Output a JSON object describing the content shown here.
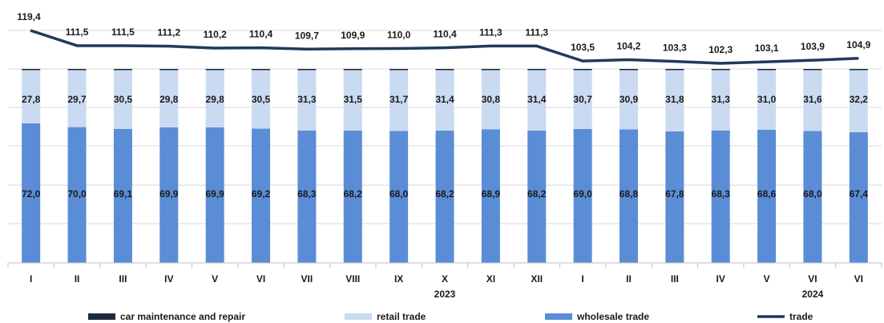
{
  "chart_data": {
    "type": "bar",
    "stacked": true,
    "categories": [
      "I",
      "II",
      "III",
      "IV",
      "V",
      "VI",
      "VII",
      "VIII",
      "IX",
      "X",
      "XI",
      "XII",
      "I",
      "II",
      "III",
      "IV",
      "V",
      "VI",
      "VI"
    ],
    "year_labels": [
      {
        "label": "2023",
        "category_index": 9
      },
      {
        "label": "2024",
        "category_index": 17
      }
    ],
    "series": [
      {
        "name": "car maintenance and repair",
        "color": "#1b2a3c",
        "values": [
          0.2,
          0.3,
          0.4,
          0.3,
          0.3,
          0.3,
          0.4,
          0.3,
          0.3,
          0.4,
          0.3,
          0.4,
          0.3,
          0.3,
          0.4,
          0.4,
          0.4,
          0.4,
          0.4
        ]
      },
      {
        "name": "retail trade",
        "color": "#c9daf1",
        "values": [
          27.8,
          29.7,
          30.5,
          29.8,
          29.8,
          30.5,
          31.3,
          31.5,
          31.7,
          31.4,
          30.8,
          31.4,
          30.7,
          30.9,
          31.8,
          31.3,
          31.0,
          31.6,
          32.2
        ]
      },
      {
        "name": "wholesale trade",
        "color": "#5b8dd6",
        "values": [
          72.0,
          70.0,
          69.1,
          69.9,
          69.9,
          69.2,
          68.3,
          68.2,
          68.0,
          68.2,
          68.9,
          68.2,
          69.0,
          68.8,
          67.8,
          68.3,
          68.6,
          68.0,
          67.4
        ]
      },
      {
        "name": "trade",
        "type": "line",
        "color": "#1f3a5c",
        "values": [
          119.4,
          111.5,
          111.5,
          111.2,
          110.2,
          110.4,
          109.7,
          109.9,
          110.0,
          110.4,
          111.3,
          111.3,
          103.5,
          104.2,
          103.3,
          102.3,
          103.1,
          103.9,
          104.9
        ]
      }
    ],
    "labels": {
      "retail trade": [
        "27,8",
        "29,7",
        "30,5",
        "29,8",
        "29,8",
        "30,5",
        "31,3",
        "31,5",
        "31,7",
        "31,4",
        "30,8",
        "31,4",
        "30,7",
        "30,9",
        "31,8",
        "31,3",
        "31,0",
        "31,6",
        "32,2"
      ],
      "wholesale trade": [
        "72,0",
        "70,0",
        "69,1",
        "69,9",
        "69,9",
        "69,2",
        "68,3",
        "68,2",
        "68,0",
        "68,2",
        "68,9",
        "68,2",
        "69,0",
        "68,8",
        "67,8",
        "68,3",
        "68,6",
        "68,0",
        "67,4"
      ],
      "trade": [
        "119,4",
        "111,5",
        "111,5",
        "111,2",
        "110,2",
        "110,4",
        "109,7",
        "109,9",
        "110,0",
        "110,4",
        "111,3",
        "111,3",
        "103,5",
        "104,2",
        "103,3",
        "102,3",
        "103,1",
        "103,9",
        "104,9"
      ]
    },
    "ylim_bars": [
      0,
      100
    ],
    "grid": true,
    "legend_placement": "bottom"
  }
}
